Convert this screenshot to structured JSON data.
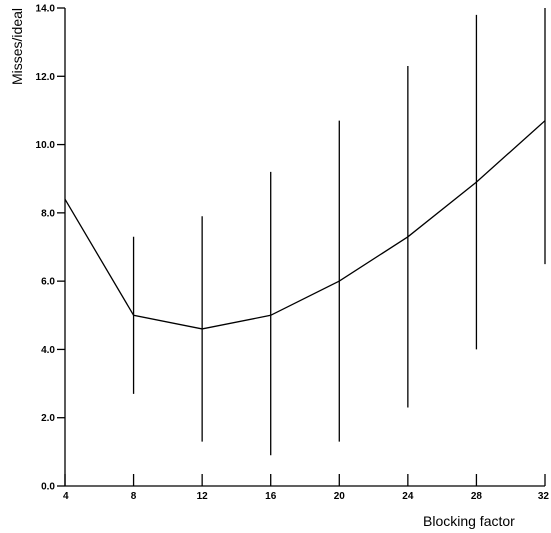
{
  "chart_data": {
    "type": "line",
    "title": "",
    "xlabel": "Blocking factor",
    "ylabel": "Misses/ideal",
    "x": [
      4,
      8,
      12,
      16,
      20,
      24,
      28,
      32
    ],
    "xlim": [
      4,
      32
    ],
    "ylim": [
      0,
      14
    ],
    "x_ticks": [
      4,
      8,
      12,
      16,
      20,
      24,
      28,
      32
    ],
    "x_tick_labels": [
      "4",
      "8",
      "12",
      "16",
      "20",
      "24",
      "28",
      "32"
    ],
    "y_ticks": [
      0,
      2,
      4,
      6,
      8,
      10,
      12,
      14
    ],
    "y_tick_labels": [
      "0.0",
      "2.0",
      "4.0",
      "6.0",
      "8.0",
      "10.0",
      "12.0",
      "14.0"
    ],
    "grid": false,
    "legend": "none",
    "series": [
      {
        "values": [
          8.4,
          5.0,
          4.6,
          5.0,
          6.0,
          7.3,
          8.9,
          10.7
        ],
        "error_low": [
          null,
          2.7,
          1.3,
          0.9,
          1.3,
          2.3,
          4.0,
          6.5
        ],
        "error_high": [
          null,
          7.3,
          7.9,
          9.2,
          10.7,
          12.3,
          13.8,
          15.0
        ]
      }
    ],
    "colors": {
      "line": "#000000",
      "axis": "#000000",
      "background": "#ffffff"
    }
  }
}
